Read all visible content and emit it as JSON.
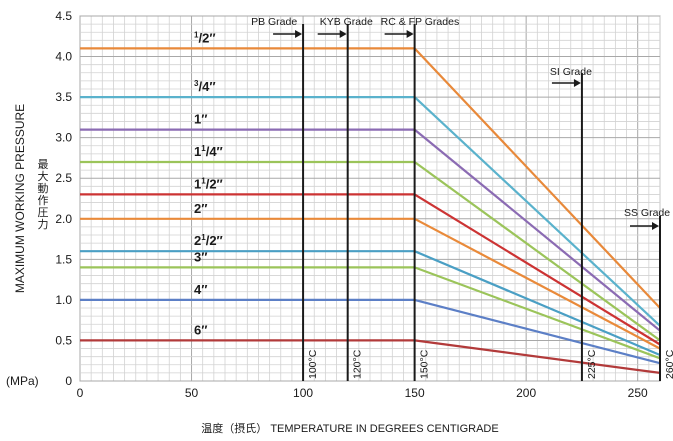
{
  "chart_data": {
    "type": "line",
    "ylabel": "MAXIMUM WORKING PRESSURE",
    "ylabel_cn": "最大動作圧力",
    "yunit": "(MPa)",
    "xlabel": "温度（摂氏） TEMPERATURE IN DEGREES CENTIGRADE",
    "xlim": [
      0,
      260
    ],
    "ylim": [
      0,
      4.5
    ],
    "xticks": [
      "0",
      "50",
      "100",
      "150",
      "200",
      "250"
    ],
    "yticks": [
      "0",
      "0.5",
      "1.0",
      "1.5",
      "2.0",
      "2.5",
      "3.0",
      "3.5",
      "4.0",
      "4.5"
    ],
    "grid": true,
    "series": [
      {
        "name": "1/2\"",
        "color": "#e8893a",
        "x": [
          0,
          150,
          260
        ],
        "y": [
          4.1,
          4.1,
          0.9
        ]
      },
      {
        "name": "3/4\"",
        "color": "#5ab2cc",
        "x": [
          0,
          150,
          260
        ],
        "y": [
          3.5,
          3.5,
          0.68
        ]
      },
      {
        "name": "1\"",
        "color": "#8b6bb3",
        "x": [
          0,
          150,
          260
        ],
        "y": [
          3.1,
          3.1,
          0.62
        ]
      },
      {
        "name": "1 1/4\"",
        "color": "#9bc45a",
        "x": [
          0,
          150,
          260
        ],
        "y": [
          2.7,
          2.7,
          0.5
        ]
      },
      {
        "name": "1 1/2\"",
        "color": "#cc3333",
        "x": [
          0,
          150,
          260
        ],
        "y": [
          2.3,
          2.3,
          0.45
        ]
      },
      {
        "name": "2\"",
        "color": "#e98a3a",
        "x": [
          0,
          150,
          260
        ],
        "y": [
          2.0,
          2.0,
          0.4
        ]
      },
      {
        "name": "2 1/2\"",
        "color": "#4a9fc4",
        "x": [
          0,
          150,
          260
        ],
        "y": [
          1.6,
          1.6,
          0.32
        ]
      },
      {
        "name": "3\"",
        "color": "#9bc45a",
        "x": [
          0,
          150,
          260
        ],
        "y": [
          1.4,
          1.4,
          0.28
        ]
      },
      {
        "name": "4\"",
        "color": "#5c7fc6",
        "x": [
          0,
          150,
          260
        ],
        "y": [
          1.0,
          1.0,
          0.22
        ]
      },
      {
        "name": "6\"",
        "color": "#b23a3a",
        "x": [
          0,
          150,
          260
        ],
        "y": [
          0.5,
          0.5,
          0.1
        ]
      }
    ],
    "grades": [
      {
        "name": "PB Grade",
        "temp": 100,
        "temp_label": "100°C"
      },
      {
        "name": "KYB Grade",
        "temp": 120,
        "temp_label": "120°C"
      },
      {
        "name": "RC & FP Grades",
        "temp": 150,
        "temp_label": "150°C"
      },
      {
        "name": "SI Grade",
        "temp": 225,
        "temp_label": "225°C"
      },
      {
        "name": "SS Grade",
        "temp": 260,
        "temp_label": "260°C"
      }
    ],
    "size_labels": [
      {
        "whole": "",
        "num": "1",
        "den": "2",
        "y": 4.1
      },
      {
        "whole": "",
        "num": "3",
        "den": "4",
        "y": 3.5
      },
      {
        "whole": "1",
        "num": "",
        "den": "",
        "y": 3.1
      },
      {
        "whole": "1",
        "num": "1",
        "den": "4",
        "y": 2.7
      },
      {
        "whole": "1",
        "num": "1",
        "den": "2",
        "y": 2.3
      },
      {
        "whole": "2",
        "num": "",
        "den": "",
        "y": 2.0
      },
      {
        "whole": "2",
        "num": "1",
        "den": "2",
        "y": 1.6
      },
      {
        "whole": "3",
        "num": "",
        "den": "",
        "y": 1.4
      },
      {
        "whole": "4",
        "num": "",
        "den": "",
        "y": 1.0
      },
      {
        "whole": "6",
        "num": "",
        "den": "",
        "y": 0.5
      }
    ]
  }
}
